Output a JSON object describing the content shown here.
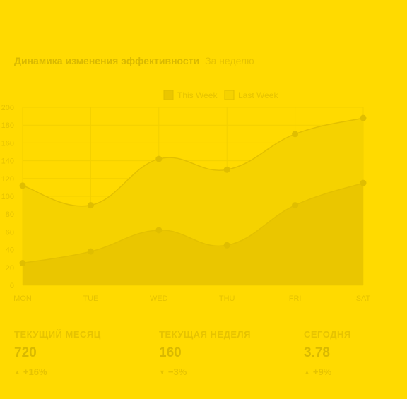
{
  "header": {
    "title": "Динамика изменения эффективности",
    "subtitle": "За неделю"
  },
  "chart_data": {
    "type": "area",
    "categories": [
      "MON",
      "TUE",
      "WED",
      "THU",
      "FRI",
      "SAT"
    ],
    "series": [
      {
        "name": "This Week",
        "values": [
          25,
          38,
          62,
          45,
          90,
          115
        ],
        "color": "#EAC600"
      },
      {
        "name": "Last Week",
        "values": [
          112,
          90,
          142,
          130,
          170,
          188
        ],
        "color": "#F5D200"
      }
    ],
    "ylim": [
      0,
      200
    ],
    "yticks": [
      0,
      20,
      40,
      60,
      80,
      100,
      120,
      140,
      160,
      180,
      200
    ],
    "grid": true,
    "legend": "top-center",
    "smooth": true
  },
  "stats": [
    {
      "label": "ТЕКУЩИЙ МЕСЯЦ",
      "value": "720",
      "arrow": "▲",
      "change": "+16%"
    },
    {
      "label": "ТЕКУЩАЯ НЕДЕЛЯ",
      "value": "160",
      "arrow": "▼",
      "change": "−3%"
    },
    {
      "label": "СЕГОДНЯ",
      "value": "3.78",
      "arrow": "▲",
      "change": "+9%"
    }
  ],
  "colors": {
    "background": "#FFDA00",
    "axis_text": "#E6C300",
    "grid": "#F3D000",
    "marker": "#E0BE00",
    "line": "#E3C000"
  }
}
